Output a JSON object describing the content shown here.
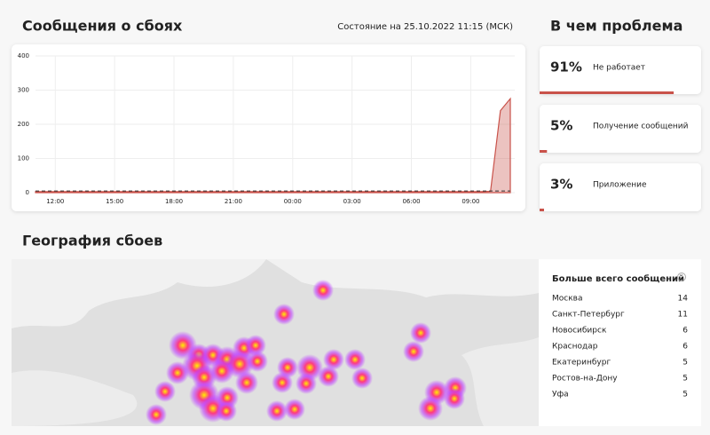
{
  "outages": {
    "title": "Сообщения о сбоях",
    "status": "Состояние на 25.10.2022 11:15 (МСК)"
  },
  "chart_data": {
    "type": "area",
    "categories": [
      null,
      null,
      "12:00",
      null,
      null,
      null,
      null,
      null,
      "15:00",
      null,
      null,
      null,
      null,
      null,
      "18:00",
      null,
      null,
      null,
      null,
      null,
      "21:00",
      null,
      null,
      null,
      null,
      null,
      "00:00",
      null,
      null,
      null,
      null,
      null,
      "03:00",
      null,
      null,
      null,
      null,
      null,
      "06:00",
      null,
      null,
      null,
      null,
      null,
      "09:00",
      null,
      null,
      null,
      null
    ],
    "series": [
      {
        "color": "#c9524a",
        "values": [
          3,
          3,
          3,
          3,
          3,
          3,
          3,
          3,
          3,
          3,
          3,
          3,
          3,
          3,
          3,
          3,
          3,
          3,
          3,
          3,
          3,
          3,
          3,
          3,
          3,
          3,
          3,
          3,
          3,
          3,
          3,
          3,
          3,
          3,
          3,
          3,
          3,
          3,
          3,
          3,
          3,
          3,
          3,
          3,
          3,
          3,
          4,
          240,
          275
        ]
      },
      {
        "color": "#333333",
        "dashed": true,
        "values": [
          5,
          5,
          5,
          5,
          5,
          5,
          5,
          5,
          5,
          5,
          5,
          5,
          5,
          5,
          5,
          5,
          5,
          5,
          5,
          5,
          5,
          5,
          5,
          5,
          5,
          5,
          5,
          5,
          5,
          5,
          5,
          5,
          5,
          5,
          5,
          5,
          5,
          5,
          5,
          5,
          5,
          5,
          5,
          5,
          5,
          5,
          5,
          5,
          5
        ]
      }
    ],
    "ylim": [
      0,
      400
    ],
    "yticks": [
      0,
      100,
      200,
      300,
      400
    ],
    "grid": true
  },
  "problems": {
    "title": "В чем проблема",
    "items": [
      {
        "percent": {
          "value": 91,
          "label": "91%"
        },
        "label": "Не работает"
      },
      {
        "percent": {
          "value": 5,
          "label": "5%"
        },
        "label": "Получение сообщений"
      },
      {
        "percent": {
          "value": 3,
          "label": "3%"
        },
        "label": "Приложение"
      }
    ]
  },
  "geography": {
    "title": "География сбоев"
  },
  "top_cities": {
    "title": "Больше всего сообщений",
    "rows": [
      {
        "city": "Москва",
        "count": 14
      },
      {
        "city": "Санкт-Петербург",
        "count": 11
      },
      {
        "city": "Новосибирск",
        "count": 6
      },
      {
        "city": "Краснодар",
        "count": 6
      },
      {
        "city": "Екатеринбург",
        "count": 5
      },
      {
        "city": "Ростов-на-Дону",
        "count": 5
      },
      {
        "city": "Уфа",
        "count": 5
      }
    ]
  }
}
